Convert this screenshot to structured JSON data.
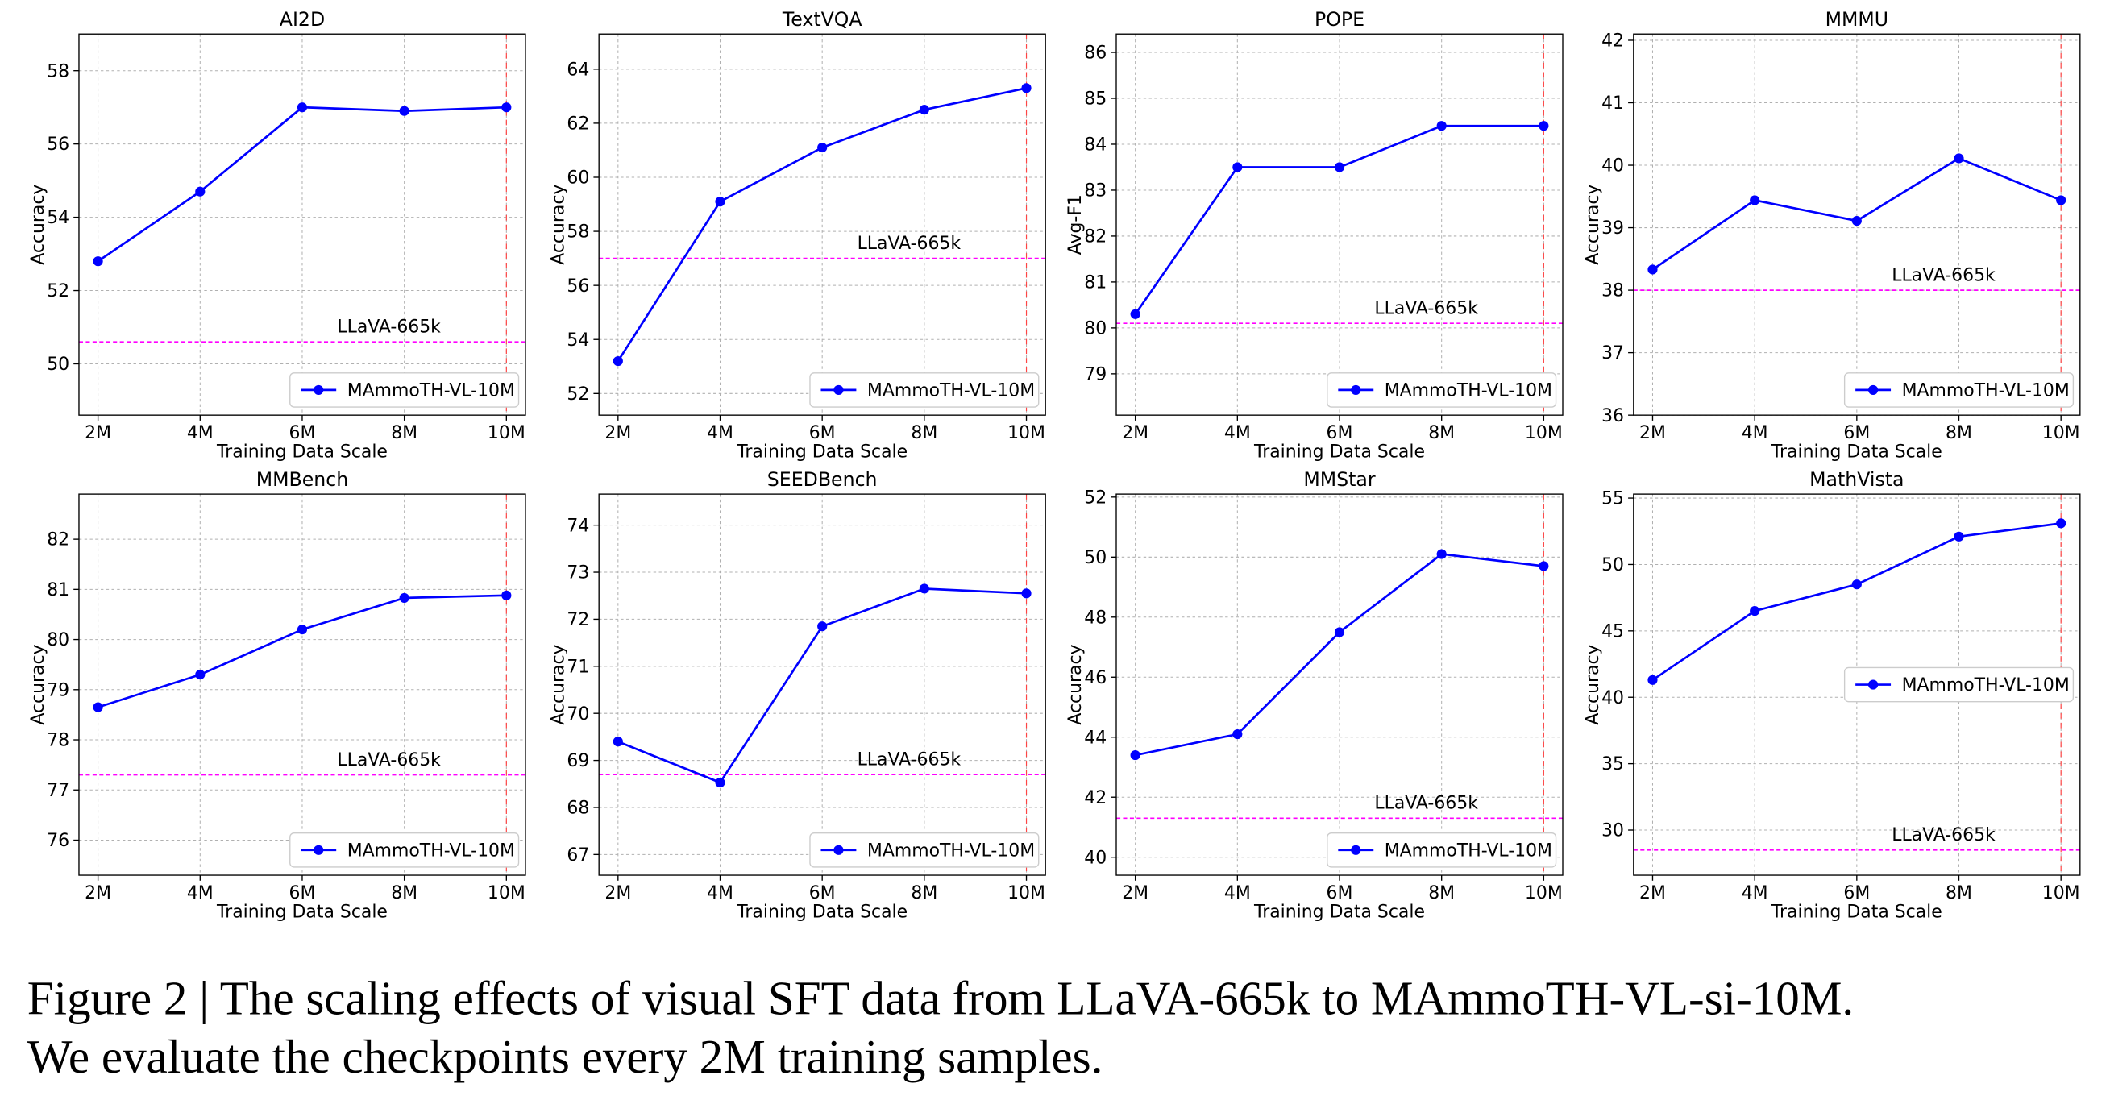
{
  "chart_data": [
    {
      "type": "line",
      "title": "AI2D",
      "x_label": "Training Data Scale",
      "y_label": "Accuracy",
      "categories": [
        "2M",
        "4M",
        "6M",
        "8M",
        "10M"
      ],
      "series": [
        {
          "name": "MAmmoTH-VL-10M",
          "color": "#0000ff",
          "values": [
            52.8,
            54.7,
            57.0,
            56.9,
            57.0
          ]
        }
      ],
      "baseline": {
        "name": "LLaVA-665k",
        "color": "#ff00ff",
        "value": 50.6
      },
      "ylim": [
        48.6,
        59.0
      ],
      "yticks": [
        50,
        52,
        54,
        56,
        58
      ],
      "grid": true,
      "legend": "lower right"
    },
    {
      "type": "line",
      "title": "TextVQA",
      "x_label": "Training Data Scale",
      "y_label": "Accuracy",
      "categories": [
        "2M",
        "4M",
        "6M",
        "8M",
        "10M"
      ],
      "series": [
        {
          "name": "MAmmoTH-VL-10M",
          "color": "#0000ff",
          "values": [
            53.2,
            59.1,
            61.1,
            62.5,
            63.3
          ]
        }
      ],
      "baseline": {
        "name": "LLaVA-665k",
        "color": "#ff00ff",
        "value": 57.0
      },
      "ylim": [
        51.2,
        65.3
      ],
      "yticks": [
        52,
        54,
        56,
        58,
        60,
        62,
        64
      ],
      "grid": true,
      "legend": "lower right"
    },
    {
      "type": "line",
      "title": "POPE",
      "x_label": "Training Data Scale",
      "y_label": "Avg-F1",
      "categories": [
        "2M",
        "4M",
        "6M",
        "8M",
        "10M"
      ],
      "series": [
        {
          "name": "MAmmoTH-VL-10M",
          "color": "#0000ff",
          "values": [
            80.3,
            83.5,
            83.5,
            84.4,
            84.4
          ]
        }
      ],
      "baseline": {
        "name": "LLaVA-665k",
        "color": "#ff00ff",
        "value": 80.1
      },
      "ylim": [
        78.1,
        86.4
      ],
      "yticks": [
        79,
        80,
        81,
        82,
        83,
        84,
        85,
        86
      ],
      "grid": true,
      "legend": "lower right"
    },
    {
      "type": "line",
      "title": "MMMU",
      "x_label": "Training Data Scale",
      "y_label": "Accuracy",
      "categories": [
        "2M",
        "4M",
        "6M",
        "8M",
        "10M"
      ],
      "series": [
        {
          "name": "MAmmoTH-VL-10M",
          "color": "#0000ff",
          "values": [
            38.33,
            39.44,
            39.11,
            40.11,
            39.44
          ]
        }
      ],
      "baseline": {
        "name": "LLaVA-665k",
        "color": "#ff00ff",
        "value": 38.0
      },
      "ylim": [
        36.0,
        42.1
      ],
      "yticks": [
        36,
        37,
        38,
        39,
        40,
        41,
        42
      ],
      "grid": true,
      "legend": "lower right"
    },
    {
      "type": "line",
      "title": "MMBench",
      "x_label": "Training Data Scale",
      "y_label": "Accuracy",
      "categories": [
        "2M",
        "4M",
        "6M",
        "8M",
        "10M"
      ],
      "series": [
        {
          "name": "MAmmoTH-VL-10M",
          "color": "#0000ff",
          "values": [
            78.65,
            79.3,
            80.2,
            80.83,
            80.88
          ]
        }
      ],
      "baseline": {
        "name": "LLaVA-665k",
        "color": "#ff00ff",
        "value": 77.3
      },
      "ylim": [
        75.3,
        82.9
      ],
      "yticks": [
        76,
        77,
        78,
        79,
        80,
        81,
        82
      ],
      "grid": true,
      "legend": "lower right"
    },
    {
      "type": "line",
      "title": "SEEDBench",
      "x_label": "Training Data Scale",
      "y_label": "Accuracy",
      "categories": [
        "2M",
        "4M",
        "6M",
        "8M",
        "10M"
      ],
      "series": [
        {
          "name": "MAmmoTH-VL-10M",
          "color": "#0000ff",
          "values": [
            69.4,
            68.53,
            71.85,
            72.65,
            72.55
          ]
        }
      ],
      "baseline": {
        "name": "LLaVA-665k",
        "color": "#ff00ff",
        "value": 68.7
      },
      "ylim": [
        66.56,
        74.66
      ],
      "yticks": [
        67,
        68,
        69,
        70,
        71,
        72,
        73,
        74
      ],
      "grid": true,
      "legend": "lower right"
    },
    {
      "type": "line",
      "title": "MMStar",
      "x_label": "Training Data Scale",
      "y_label": "Accuracy",
      "categories": [
        "2M",
        "4M",
        "6M",
        "8M",
        "10M"
      ],
      "series": [
        {
          "name": "MAmmoTH-VL-10M",
          "color": "#0000ff",
          "values": [
            43.4,
            44.1,
            47.5,
            50.1,
            49.7
          ]
        }
      ],
      "baseline": {
        "name": "LLaVA-665k",
        "color": "#ff00ff",
        "value": 41.3
      },
      "ylim": [
        39.4,
        52.1
      ],
      "yticks": [
        40,
        42,
        44,
        46,
        48,
        50,
        52
      ],
      "grid": true,
      "legend": "lower right"
    },
    {
      "type": "line",
      "title": "MathVista",
      "x_label": "Training Data Scale",
      "y_label": "Accuracy",
      "categories": [
        "2M",
        "4M",
        "6M",
        "8M",
        "10M"
      ],
      "series": [
        {
          "name": "MAmmoTH-VL-10M",
          "color": "#0000ff",
          "values": [
            41.3,
            46.5,
            48.5,
            52.1,
            53.1
          ]
        }
      ],
      "baseline": {
        "name": "LLaVA-665k",
        "color": "#ff00ff",
        "value": 28.5
      },
      "ylim": [
        26.6,
        55.3
      ],
      "yticks": [
        30,
        35,
        40,
        45,
        50,
        55
      ],
      "grid": true,
      "legend": "center right"
    }
  ],
  "caption": [
    "Figure 2 | The scaling effects of visual SFT data from LLaVA-665k to MAmmoTH-VL-si-10M.",
    "We evaluate the checkpoints every 2M training samples."
  ]
}
